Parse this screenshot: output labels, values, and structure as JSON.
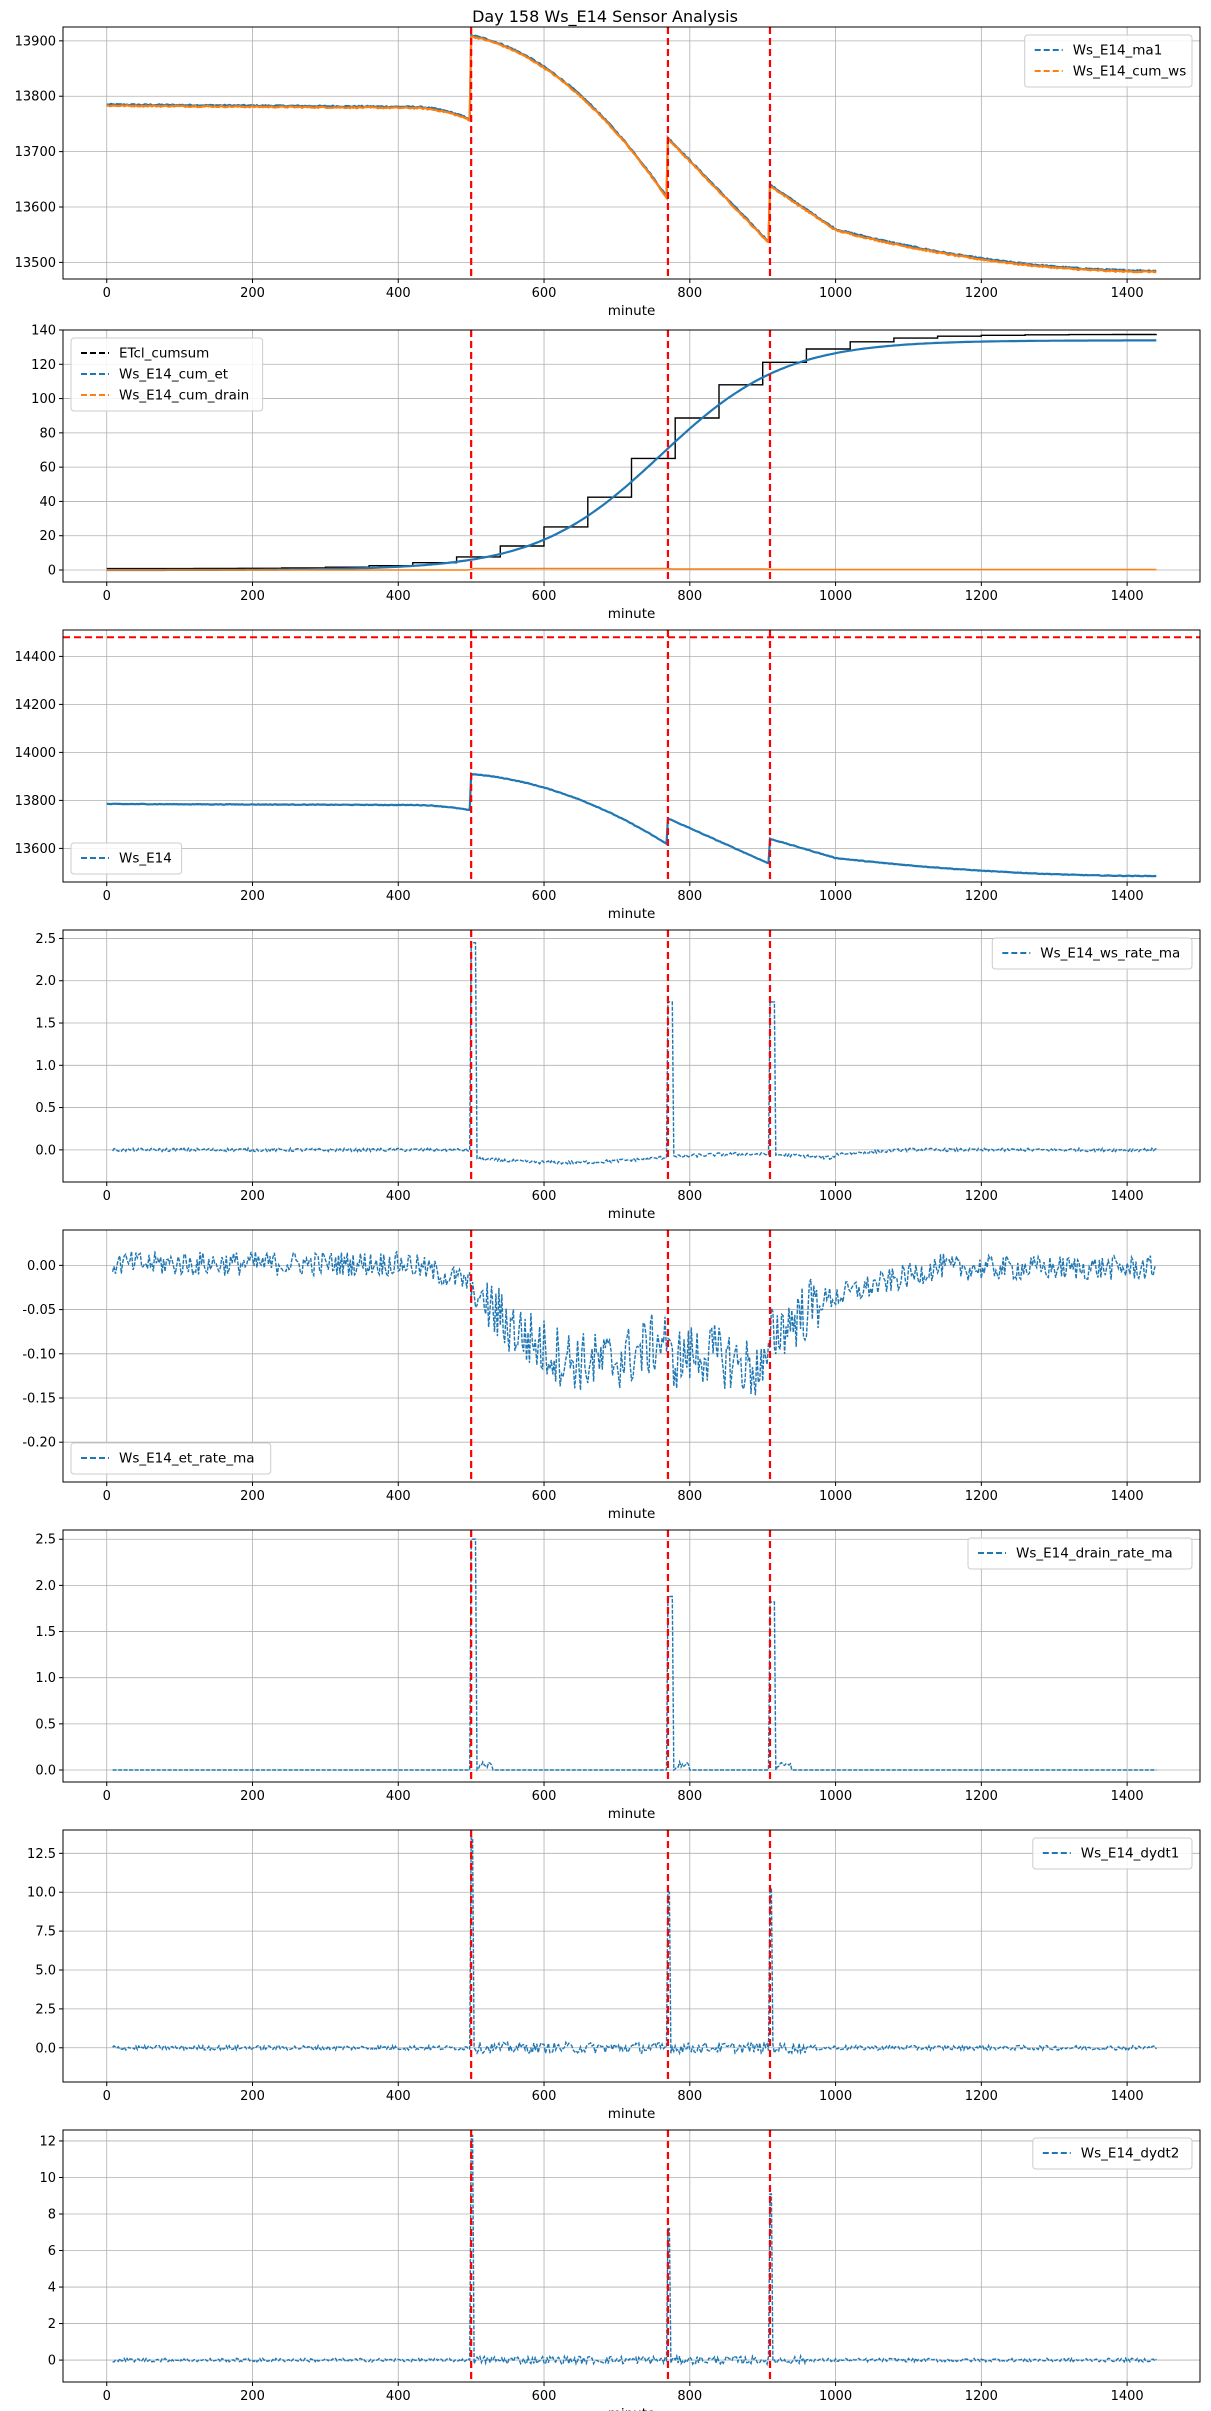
{
  "figure": {
    "title": "Day 158 Ws_E14 Sensor Analysis",
    "xlabel": "minute",
    "event_lines_minutes": [
      500,
      770,
      910
    ],
    "colors": {
      "blue": "#1f77b4",
      "orange": "#ff7f0e",
      "black": "#000000",
      "red": "#ff0000",
      "grid": "#b0b0b0"
    }
  },
  "chart_data": [
    {
      "type": "line",
      "xlim": [
        -60,
        1500
      ],
      "ylim": [
        13470,
        13925
      ],
      "xticks": [
        0,
        200,
        400,
        600,
        800,
        1000,
        1200,
        1400
      ],
      "yticks": [
        13500,
        13600,
        13700,
        13800,
        13900
      ],
      "legend_loc": "upper right",
      "series": [
        {
          "name": "Ws_E14_ma1",
          "color": "blue",
          "kind": "ws",
          "offset": 0
        },
        {
          "name": "Ws_E14_cum_ws",
          "color": "orange",
          "kind": "ws",
          "offset": -2
        }
      ],
      "hlines": []
    },
    {
      "type": "line",
      "xlim": [
        -60,
        1500
      ],
      "ylim": [
        -7,
        140
      ],
      "xticks": [
        0,
        200,
        400,
        600,
        800,
        1000,
        1200,
        1400
      ],
      "yticks": [
        0,
        20,
        40,
        60,
        80,
        100,
        120,
        140
      ],
      "legend_loc": "upper left",
      "series": [
        {
          "name": "ETcl_cumsum",
          "color": "black",
          "kind": "etcl"
        },
        {
          "name": "Ws_E14_cum_et",
          "color": "blue",
          "kind": "cum_et"
        },
        {
          "name": "Ws_E14_cum_drain",
          "color": "orange",
          "kind": "cum_drain"
        }
      ],
      "hlines": []
    },
    {
      "type": "line",
      "xlim": [
        -60,
        1500
      ],
      "ylim": [
        13460,
        14510
      ],
      "xticks": [
        0,
        200,
        400,
        600,
        800,
        1000,
        1200,
        1400
      ],
      "yticks": [
        13600,
        13800,
        14000,
        14200,
        14400
      ],
      "legend_loc": "lower left",
      "series": [
        {
          "name": "Ws_E14",
          "color": "blue",
          "kind": "ws",
          "offset": 0
        }
      ],
      "hlines": [
        14480
      ]
    },
    {
      "type": "line",
      "xlim": [
        -60,
        1500
      ],
      "ylim": [
        -0.38,
        2.6
      ],
      "xticks": [
        0,
        200,
        400,
        600,
        800,
        1000,
        1200,
        1400
      ],
      "yticks": [
        0.0,
        0.5,
        1.0,
        1.5,
        2.0,
        2.5
      ],
      "ytick_decimals": 1,
      "legend_loc": "upper right",
      "series": [
        {
          "name": "Ws_E14_ws_rate_ma",
          "color": "blue",
          "kind": "ws_rate"
        }
      ],
      "hlines": []
    },
    {
      "type": "line",
      "xlim": [
        -60,
        1500
      ],
      "ylim": [
        -0.245,
        0.04
      ],
      "xticks": [
        0,
        200,
        400,
        600,
        800,
        1000,
        1200,
        1400
      ],
      "yticks": [
        -0.2,
        -0.15,
        -0.1,
        -0.05,
        0.0
      ],
      "ytick_decimals": 2,
      "legend_loc": "lower left",
      "series": [
        {
          "name": "Ws_E14_et_rate_ma",
          "color": "blue",
          "kind": "et_rate"
        }
      ],
      "hlines": []
    },
    {
      "type": "line",
      "xlim": [
        -60,
        1500
      ],
      "ylim": [
        -0.13,
        2.6
      ],
      "xticks": [
        0,
        200,
        400,
        600,
        800,
        1000,
        1200,
        1400
      ],
      "yticks": [
        0.0,
        0.5,
        1.0,
        1.5,
        2.0,
        2.5
      ],
      "ytick_decimals": 1,
      "legend_loc": "upper right",
      "series": [
        {
          "name": "Ws_E14_drain_rate_ma",
          "color": "blue",
          "kind": "drain_rate"
        }
      ],
      "hlines": []
    },
    {
      "type": "line",
      "xlim": [
        -60,
        1500
      ],
      "ylim": [
        -2.2,
        14.0
      ],
      "xticks": [
        0,
        200,
        400,
        600,
        800,
        1000,
        1200,
        1400
      ],
      "yticks": [
        0.0,
        2.5,
        5.0,
        7.5,
        10.0,
        12.5
      ],
      "ytick_decimals": 1,
      "legend_loc": "upper right",
      "series": [
        {
          "name": "Ws_E14_dydt1",
          "color": "blue",
          "kind": "dydt1"
        }
      ],
      "hlines": []
    },
    {
      "type": "line",
      "xlim": [
        -60,
        1500
      ],
      "ylim": [
        -1.2,
        12.6
      ],
      "xticks": [
        0,
        200,
        400,
        600,
        800,
        1000,
        1200,
        1400
      ],
      "yticks": [
        0,
        2,
        4,
        6,
        8,
        10,
        12
      ],
      "ytick_decimals": 0,
      "legend_loc": "upper right",
      "series": [
        {
          "name": "Ws_E14_dydt2",
          "color": "blue",
          "kind": "dydt2"
        }
      ],
      "hlines": []
    }
  ]
}
